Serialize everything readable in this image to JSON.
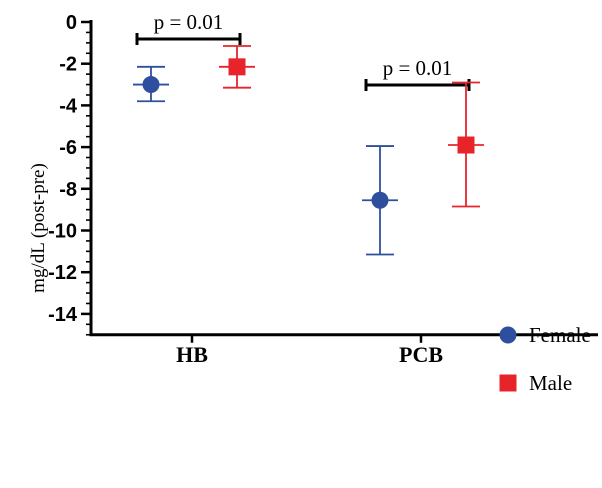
{
  "chart_data": {
    "type": "scatter",
    "categories": [
      "HB",
      "PCB"
    ],
    "ylabel": "mg/dL (post-pre)",
    "ylim": [
      -15,
      0
    ],
    "yticks": [
      0,
      -2,
      -4,
      -6,
      -8,
      -10,
      -12,
      -14
    ],
    "series": [
      {
        "name": "Female",
        "color": "#2e4f9e",
        "marker": "circle",
        "values": [
          -3.0,
          -8.55
        ],
        "errors_low": [
          -3.8,
          -11.15
        ],
        "errors_high": [
          -2.15,
          -5.95
        ]
      },
      {
        "name": "Male",
        "color": "#e8242b",
        "marker": "square",
        "values": [
          -2.15,
          -5.9
        ],
        "errors_low": [
          -3.15,
          -8.85
        ],
        "errors_high": [
          -1.15,
          -2.9
        ]
      }
    ],
    "annotations": [
      {
        "text": "p = 0.01",
        "category": "HB"
      },
      {
        "text": "p = 0.01",
        "category": "PCB"
      }
    ],
    "legend": "right"
  }
}
